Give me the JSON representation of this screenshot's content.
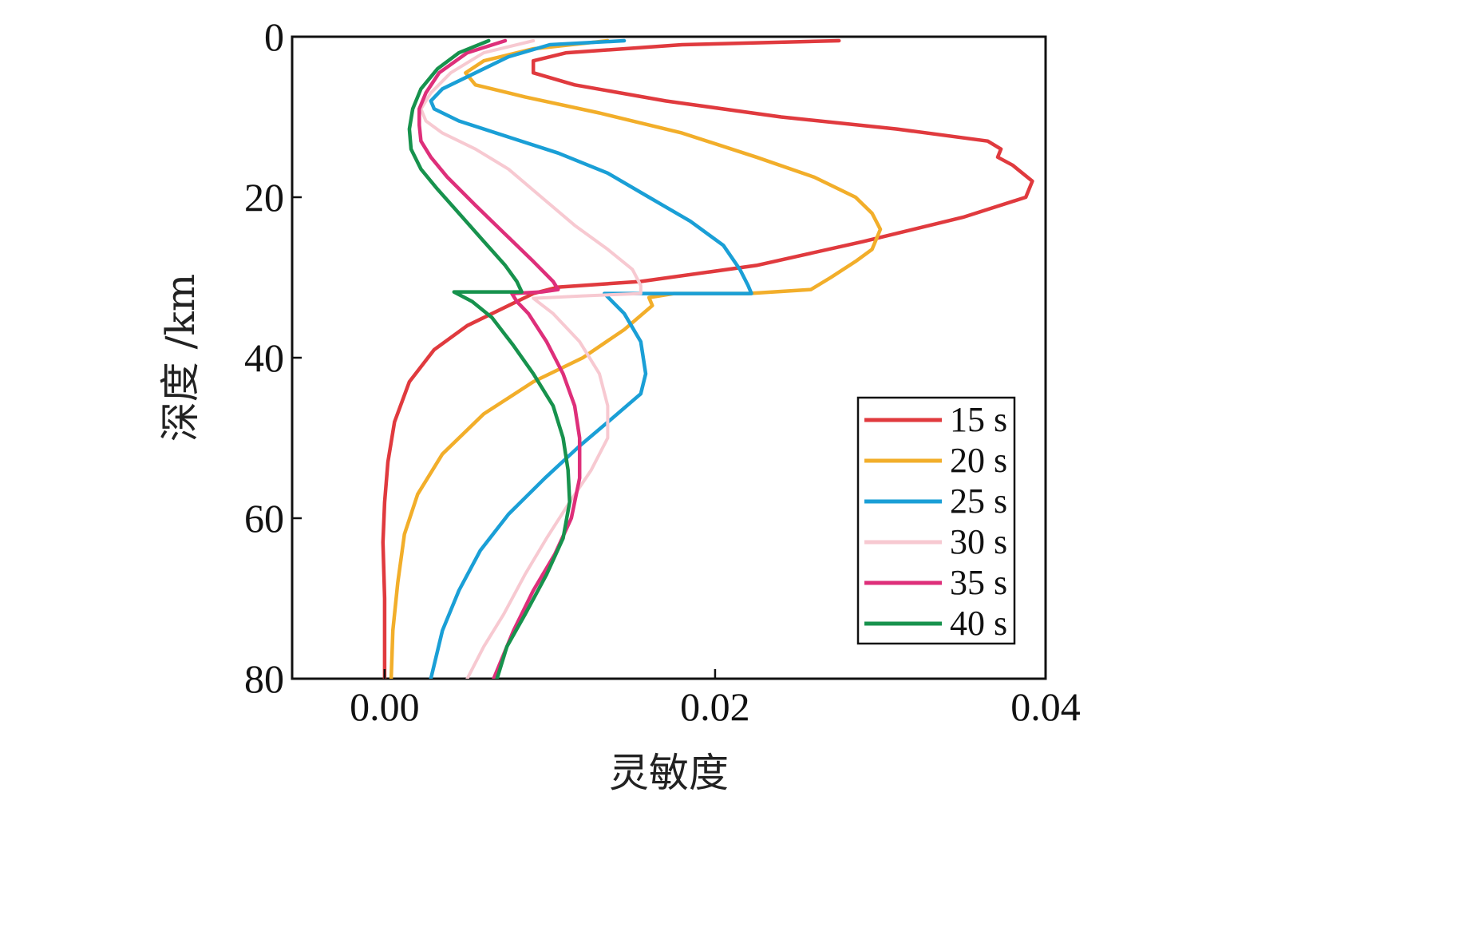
{
  "chart_data": {
    "type": "line",
    "orientation": "depth-profile",
    "title": "",
    "xlabel": "灵敏度",
    "ylabel": "深度 /km",
    "xlim": [
      -0.0055,
      0.04
    ],
    "ylim": [
      80,
      0
    ],
    "y_inverted": true,
    "x_ticks": [
      0.0,
      0.02,
      0.04
    ],
    "x_tick_labels": [
      "0.00",
      "0.02",
      "0.04"
    ],
    "y_ticks": [
      0,
      20,
      40,
      60,
      80
    ],
    "y_tick_labels": [
      "0",
      "20",
      "40",
      "60",
      "80"
    ],
    "grid": false,
    "legend_position": "bottom-right",
    "series": [
      {
        "name": "15 s",
        "color": "#e03a3e",
        "points": [
          [
            0.0275,
            0.5
          ],
          [
            0.018,
            1.0
          ],
          [
            0.011,
            2.0
          ],
          [
            0.009,
            3.0
          ],
          [
            0.009,
            4.5
          ],
          [
            0.0115,
            6.0
          ],
          [
            0.017,
            8.0
          ],
          [
            0.024,
            10.0
          ],
          [
            0.031,
            11.5
          ],
          [
            0.0365,
            13.0
          ],
          [
            0.0373,
            14.0
          ],
          [
            0.0371,
            15.0
          ],
          [
            0.038,
            16.0
          ],
          [
            0.0392,
            18.0
          ],
          [
            0.0388,
            20.0
          ],
          [
            0.035,
            22.5
          ],
          [
            0.029,
            25.5
          ],
          [
            0.0225,
            28.5
          ],
          [
            0.0155,
            30.5
          ],
          [
            0.0105,
            31.2
          ],
          [
            0.009,
            32.0
          ],
          [
            0.0075,
            33.5
          ],
          [
            0.005,
            36.0
          ],
          [
            0.003,
            39.0
          ],
          [
            0.0015,
            43.0
          ],
          [
            0.0006,
            48.0
          ],
          [
            0.0002,
            53.0
          ],
          [
            0.0,
            58.0
          ],
          [
            -0.0001,
            63.0
          ],
          [
            0.0,
            70.0
          ],
          [
            0.0,
            80.0
          ]
        ]
      },
      {
        "name": "20 s",
        "color": "#f2ae2a",
        "points": [
          [
            0.0135,
            0.5
          ],
          [
            0.009,
            1.5
          ],
          [
            0.006,
            3.0
          ],
          [
            0.0049,
            4.5
          ],
          [
            0.0055,
            6.0
          ],
          [
            0.0085,
            7.5
          ],
          [
            0.013,
            9.5
          ],
          [
            0.018,
            12.0
          ],
          [
            0.0225,
            15.0
          ],
          [
            0.026,
            17.5
          ],
          [
            0.0285,
            20.0
          ],
          [
            0.0295,
            22.0
          ],
          [
            0.03,
            24.0
          ],
          [
            0.0295,
            26.5
          ],
          [
            0.0285,
            28.0
          ],
          [
            0.027,
            30.0
          ],
          [
            0.0258,
            31.5
          ],
          [
            0.022,
            32.0
          ],
          [
            0.0175,
            32.0
          ],
          [
            0.016,
            32.5
          ],
          [
            0.0162,
            33.5
          ],
          [
            0.0145,
            36.5
          ],
          [
            0.012,
            40.0
          ],
          [
            0.009,
            43.0
          ],
          [
            0.006,
            47.0
          ],
          [
            0.0035,
            52.0
          ],
          [
            0.002,
            57.0
          ],
          [
            0.0012,
            62.0
          ],
          [
            0.0008,
            68.0
          ],
          [
            0.0005,
            74.0
          ],
          [
            0.0004,
            80.0
          ]
        ]
      },
      {
        "name": "25 s",
        "color": "#1a9fd6",
        "points": [
          [
            0.0145,
            0.5
          ],
          [
            0.01,
            1.0
          ],
          [
            0.0075,
            2.5
          ],
          [
            0.0055,
            4.5
          ],
          [
            0.0035,
            6.5
          ],
          [
            0.0028,
            8.0
          ],
          [
            0.003,
            9.0
          ],
          [
            0.0045,
            10.5
          ],
          [
            0.0075,
            12.5
          ],
          [
            0.0105,
            14.5
          ],
          [
            0.0135,
            17.0
          ],
          [
            0.016,
            20.0
          ],
          [
            0.0185,
            23.0
          ],
          [
            0.0205,
            26.0
          ],
          [
            0.0215,
            29.0
          ],
          [
            0.022,
            31.0
          ],
          [
            0.0222,
            32.0
          ],
          [
            0.0175,
            32.0
          ],
          [
            0.0133,
            32.0
          ],
          [
            0.0145,
            34.5
          ],
          [
            0.0155,
            38.0
          ],
          [
            0.0158,
            42.0
          ],
          [
            0.0155,
            44.5
          ],
          [
            0.0138,
            47.5
          ],
          [
            0.0118,
            51.0
          ],
          [
            0.0097,
            55.0
          ],
          [
            0.0075,
            59.5
          ],
          [
            0.0058,
            64.0
          ],
          [
            0.0045,
            69.0
          ],
          [
            0.0035,
            74.0
          ],
          [
            0.0028,
            80.0
          ]
        ]
      },
      {
        "name": "30 s",
        "color": "#f7c9d1",
        "points": [
          [
            0.009,
            0.5
          ],
          [
            0.006,
            2.0
          ],
          [
            0.004,
            4.5
          ],
          [
            0.0028,
            7.0
          ],
          [
            0.0022,
            9.0
          ],
          [
            0.0025,
            10.5
          ],
          [
            0.0035,
            12.0
          ],
          [
            0.0055,
            14.0
          ],
          [
            0.0075,
            16.5
          ],
          [
            0.0095,
            20.0
          ],
          [
            0.0115,
            23.5
          ],
          [
            0.0135,
            26.5
          ],
          [
            0.015,
            29.0
          ],
          [
            0.0155,
            31.0
          ],
          [
            0.0155,
            32.0
          ],
          [
            0.012,
            32.3
          ],
          [
            0.009,
            32.6
          ],
          [
            0.0102,
            34.5
          ],
          [
            0.0118,
            38.0
          ],
          [
            0.013,
            42.0
          ],
          [
            0.0135,
            46.0
          ],
          [
            0.0135,
            50.0
          ],
          [
            0.0125,
            54.0
          ],
          [
            0.0112,
            58.0
          ],
          [
            0.0098,
            62.5
          ],
          [
            0.0085,
            67.0
          ],
          [
            0.0072,
            72.0
          ],
          [
            0.006,
            76.0
          ],
          [
            0.005,
            80.0
          ]
        ]
      },
      {
        "name": "35 s",
        "color": "#de2f7a",
        "points": [
          [
            0.0073,
            0.5
          ],
          [
            0.005,
            2.0
          ],
          [
            0.0033,
            4.5
          ],
          [
            0.0025,
            7.0
          ],
          [
            0.0021,
            9.0
          ],
          [
            0.0021,
            11.0
          ],
          [
            0.0022,
            13.0
          ],
          [
            0.0028,
            15.0
          ],
          [
            0.0038,
            17.5
          ],
          [
            0.0055,
            21.0
          ],
          [
            0.0075,
            25.0
          ],
          [
            0.009,
            28.0
          ],
          [
            0.0102,
            30.5
          ],
          [
            0.0105,
            31.5
          ],
          [
            0.0095,
            31.8
          ],
          [
            0.0077,
            32.0
          ],
          [
            0.008,
            33.0
          ],
          [
            0.0087,
            34.5
          ],
          [
            0.0098,
            38.0
          ],
          [
            0.0108,
            42.0
          ],
          [
            0.0115,
            46.0
          ],
          [
            0.0118,
            50.0
          ],
          [
            0.0118,
            55.0
          ],
          [
            0.0113,
            60.0
          ],
          [
            0.0103,
            64.5
          ],
          [
            0.009,
            69.0
          ],
          [
            0.0078,
            74.0
          ],
          [
            0.0066,
            80.0
          ]
        ]
      },
      {
        "name": "40 s",
        "color": "#17924d",
        "points": [
          [
            0.0063,
            0.5
          ],
          [
            0.0045,
            2.0
          ],
          [
            0.0032,
            4.0
          ],
          [
            0.0022,
            6.5
          ],
          [
            0.0017,
            9.0
          ],
          [
            0.0015,
            11.5
          ],
          [
            0.0016,
            14.0
          ],
          [
            0.0022,
            16.5
          ],
          [
            0.0032,
            19.0
          ],
          [
            0.0045,
            22.0
          ],
          [
            0.006,
            25.5
          ],
          [
            0.0073,
            28.5
          ],
          [
            0.008,
            30.5
          ],
          [
            0.0083,
            31.8
          ],
          [
            0.0062,
            31.8
          ],
          [
            0.0042,
            31.8
          ],
          [
            0.0053,
            33.0
          ],
          [
            0.0065,
            35.0
          ],
          [
            0.0078,
            38.5
          ],
          [
            0.009,
            42.0
          ],
          [
            0.0102,
            46.0
          ],
          [
            0.0108,
            50.0
          ],
          [
            0.0111,
            54.0
          ],
          [
            0.0112,
            58.0
          ],
          [
            0.0108,
            62.5
          ],
          [
            0.0098,
            67.0
          ],
          [
            0.0085,
            72.0
          ],
          [
            0.0074,
            76.0
          ],
          [
            0.0068,
            80.0
          ]
        ]
      }
    ]
  }
}
